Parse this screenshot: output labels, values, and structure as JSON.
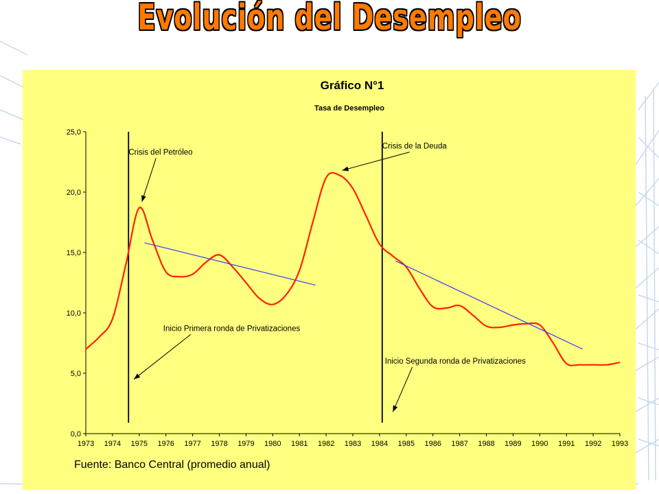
{
  "slide": {
    "title": "Evolución del Desempleo"
  },
  "colors": {
    "panel": "#ffff80",
    "series": "#ff2000",
    "trend": "#3a3aff",
    "title": "#ff7a00"
  },
  "chart_data": {
    "type": "line",
    "title": "Gráfico N°1",
    "subtitle": "Tasa de Desempleo",
    "source": "Fuente: Banco Central (promedio anual)",
    "xlabel": "",
    "ylabel": "",
    "xlim": [
      1973,
      1993
    ],
    "ylim": [
      0,
      25
    ],
    "yticks": [
      "0,0",
      "5,0",
      "10,0",
      "15,0",
      "20,0",
      "25,0"
    ],
    "xticks": [
      "1973",
      "1974",
      "1975",
      "1976",
      "1977",
      "1978",
      "1979",
      "1980",
      "1981",
      "1982",
      "1983",
      "1984",
      "1985",
      "1986",
      "1987",
      "1988",
      "1989",
      "1990",
      "1991",
      "1992",
      "1993"
    ],
    "grid": false,
    "series": [
      {
        "type": "line",
        "x": [
          1973,
          1973.5,
          1974,
          1974.5,
          1975,
          1975.5,
          1976,
          1976.5,
          1977,
          1977.5,
          1978,
          1978.5,
          1979,
          1979.5,
          1980,
          1980.5,
          1981,
          1981.5,
          1982,
          1982.5,
          1983,
          1983.5,
          1984,
          1984.5,
          1985,
          1985.5,
          1986,
          1986.5,
          1987,
          1987.5,
          1988,
          1988.5,
          1989,
          1989.5,
          1990,
          1990.5,
          1991,
          1991.5,
          1992,
          1992.5,
          1993
        ],
        "y": [
          7.0,
          8.0,
          9.5,
          14.0,
          18.7,
          16.0,
          13.4,
          13.0,
          13.2,
          14.2,
          14.8,
          13.8,
          12.5,
          11.2,
          10.7,
          11.5,
          13.5,
          17.5,
          21.2,
          21.4,
          20.3,
          18.0,
          15.7,
          14.7,
          13.8,
          12.0,
          10.5,
          10.4,
          10.6,
          9.8,
          8.9,
          8.8,
          9.0,
          9.1,
          9.0,
          7.5,
          5.8,
          5.7,
          5.7,
          5.7,
          5.9
        ]
      },
      {
        "type": "trend",
        "x": [
          1975.2,
          1981.6
        ],
        "y": [
          15.8,
          12.3
        ]
      },
      {
        "type": "trend",
        "x": [
          1984.6,
          1991.6
        ],
        "y": [
          14.3,
          7.0
        ]
      }
    ],
    "vertical_lines": [
      1974.6,
      1984.1
    ],
    "annotations": [
      {
        "text": "Crisis del Petróleo",
        "x": 1974.6,
        "y": 23.1,
        "arrow_to": [
          1975.1,
          19.2
        ]
      },
      {
        "text": "Crisis de la Deuda",
        "x": 1984.1,
        "y": 23.6,
        "arrow_to": [
          1982.6,
          21.8
        ]
      },
      {
        "text": "Inicio Primera ronda de Privatizaciones",
        "x": 1975.9,
        "y": 8.5,
        "arrow_to": [
          1974.8,
          4.5
        ]
      },
      {
        "text": "Inicio Segunda ronda de Privatizaciones",
        "x": 1984.2,
        "y": 5.8,
        "arrow_to": [
          1984.5,
          1.8
        ]
      }
    ]
  }
}
